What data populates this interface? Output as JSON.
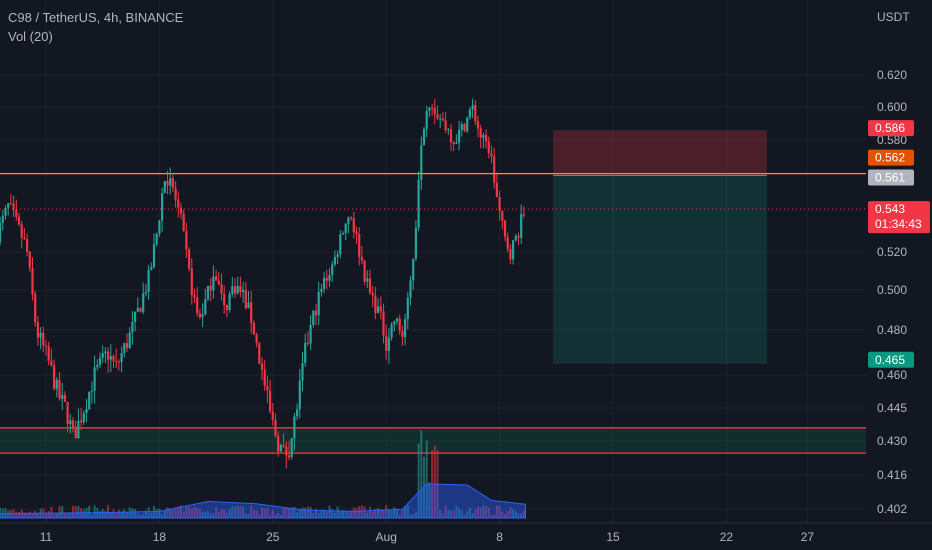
{
  "legend": {
    "symbol": "C98 / TetherUS, 4h, BINANCE",
    "indicator": "Vol (20)"
  },
  "price_axis": {
    "currency": "USDT",
    "ticks": [
      {
        "v": 0.62,
        "label": "0.620"
      },
      {
        "v": 0.6,
        "label": "0.600"
      },
      {
        "v": 0.58,
        "label": "0.580"
      },
      {
        "v": 0.52,
        "label": "0.520"
      },
      {
        "v": 0.5,
        "label": "0.500"
      },
      {
        "v": 0.48,
        "label": "0.480"
      },
      {
        "v": 0.46,
        "label": "0.460"
      },
      {
        "v": 0.445,
        "label": "0.445"
      },
      {
        "v": 0.43,
        "label": "0.430"
      },
      {
        "v": 0.416,
        "label": "0.416"
      },
      {
        "v": 0.402,
        "label": "0.402"
      }
    ]
  },
  "time_axis": {
    "ticks": [
      {
        "day": 11,
        "label": "11"
      },
      {
        "day": 18,
        "label": "18"
      },
      {
        "day": 25,
        "label": "25"
      },
      {
        "day": 32,
        "label": "Aug"
      },
      {
        "day": 39,
        "label": "8"
      },
      {
        "day": 46,
        "label": "15"
      },
      {
        "day": 53,
        "label": "22"
      },
      {
        "day": 58,
        "label": "27"
      }
    ]
  },
  "price_tags": {
    "stop_loss": {
      "value": 0.586,
      "label": "0.586",
      "color": "#f23645"
    },
    "resistance": {
      "value": 0.562,
      "label": "0.562",
      "color": "#e65100"
    },
    "entry": {
      "value": 0.561,
      "label": "0.561",
      "color": "#b2b5be"
    },
    "current": {
      "value": 0.543,
      "label": "0.543",
      "countdown": "01:34:43",
      "color": "#f23645"
    },
    "take_profit": {
      "value": 0.465,
      "label": "0.465",
      "color": "#089981"
    }
  },
  "support_zone": {
    "top": 0.436,
    "bottom": 0.425
  },
  "position_tool": {
    "start_day": 42.3,
    "end_day": 55.5,
    "stop": 0.586,
    "entry": 0.561,
    "target": 0.465
  },
  "colors": {
    "up": "#26a69a",
    "down": "#f23645",
    "resistance": "#ff9800",
    "zone": "#f23645",
    "volume_ma": "#2962ff"
  },
  "chart_data": {
    "type": "candlestick",
    "symbol": "C98/USDT",
    "timeframe": "4h",
    "ylim": [
      0.402,
      0.636
    ],
    "x_unit": "day of month (July; Aug 1 = day 32)",
    "price_keypoints": [
      {
        "day": 8.0,
        "price": 0.53
      },
      {
        "day": 8.7,
        "price": 0.545
      },
      {
        "day": 9.8,
        "price": 0.522
      },
      {
        "day": 10.4,
        "price": 0.48
      },
      {
        "day": 11.2,
        "price": 0.465
      },
      {
        "day": 11.8,
        "price": 0.45
      },
      {
        "day": 12.2,
        "price": 0.445
      },
      {
        "day": 12.7,
        "price": 0.432
      },
      {
        "day": 13.3,
        "price": 0.444
      },
      {
        "day": 14.0,
        "price": 0.46
      },
      {
        "day": 14.8,
        "price": 0.47
      },
      {
        "day": 15.3,
        "price": 0.463
      },
      {
        "day": 16.2,
        "price": 0.478
      },
      {
        "day": 16.8,
        "price": 0.492
      },
      {
        "day": 17.4,
        "price": 0.508
      },
      {
        "day": 17.9,
        "price": 0.533
      },
      {
        "day": 18.3,
        "price": 0.56
      },
      {
        "day": 18.8,
        "price": 0.555
      },
      {
        "day": 19.3,
        "price": 0.538
      },
      {
        "day": 19.9,
        "price": 0.505
      },
      {
        "day": 20.4,
        "price": 0.485
      },
      {
        "day": 20.9,
        "price": 0.495
      },
      {
        "day": 21.4,
        "price": 0.512
      },
      {
        "day": 22.0,
        "price": 0.49
      },
      {
        "day": 22.6,
        "price": 0.503
      },
      {
        "day": 23.2,
        "price": 0.497
      },
      {
        "day": 23.7,
        "price": 0.485
      },
      {
        "day": 24.1,
        "price": 0.47
      },
      {
        "day": 24.5,
        "price": 0.455
      },
      {
        "day": 24.9,
        "price": 0.44
      },
      {
        "day": 25.3,
        "price": 0.43
      },
      {
        "day": 25.7,
        "price": 0.424
      },
      {
        "day": 26.1,
        "price": 0.429
      },
      {
        "day": 26.5,
        "price": 0.446
      },
      {
        "day": 27.0,
        "price": 0.47
      },
      {
        "day": 27.6,
        "price": 0.49
      },
      {
        "day": 28.2,
        "price": 0.505
      },
      {
        "day": 28.8,
        "price": 0.515
      },
      {
        "day": 29.3,
        "price": 0.533
      },
      {
        "day": 29.8,
        "price": 0.541
      },
      {
        "day": 30.3,
        "price": 0.522
      },
      {
        "day": 30.9,
        "price": 0.5
      },
      {
        "day": 31.5,
        "price": 0.49
      },
      {
        "day": 32.0,
        "price": 0.475
      },
      {
        "day": 32.5,
        "price": 0.485
      },
      {
        "day": 33.0,
        "price": 0.478
      },
      {
        "day": 33.4,
        "price": 0.495
      },
      {
        "day": 33.8,
        "price": 0.53
      },
      {
        "day": 34.1,
        "price": 0.578
      },
      {
        "day": 34.6,
        "price": 0.605
      },
      {
        "day": 35.1,
        "price": 0.597
      },
      {
        "day": 35.6,
        "price": 0.59
      },
      {
        "day": 36.2,
        "price": 0.58
      },
      {
        "day": 36.7,
        "price": 0.587
      },
      {
        "day": 37.3,
        "price": 0.6
      },
      {
        "day": 37.9,
        "price": 0.58
      },
      {
        "day": 38.4,
        "price": 0.575
      },
      {
        "day": 38.9,
        "price": 0.545
      },
      {
        "day": 39.3,
        "price": 0.527
      },
      {
        "day": 39.7,
        "price": 0.52
      },
      {
        "day": 40.1,
        "price": 0.53
      },
      {
        "day": 40.6,
        "price": 0.543
      }
    ],
    "volume_profile": [
      {
        "day": 8,
        "ma": 0.08
      },
      {
        "day": 15,
        "ma": 0.1
      },
      {
        "day": 18,
        "ma": 0.12
      },
      {
        "day": 21,
        "ma": 0.3
      },
      {
        "day": 24,
        "ma": 0.26
      },
      {
        "day": 27,
        "ma": 0.14
      },
      {
        "day": 30,
        "ma": 0.12
      },
      {
        "day": 33,
        "ma": 0.16
      },
      {
        "day": 34.5,
        "ma": 0.62
      },
      {
        "day": 37,
        "ma": 0.6
      },
      {
        "day": 38.5,
        "ma": 0.32
      },
      {
        "day": 40.6,
        "ma": 0.25
      }
    ]
  }
}
